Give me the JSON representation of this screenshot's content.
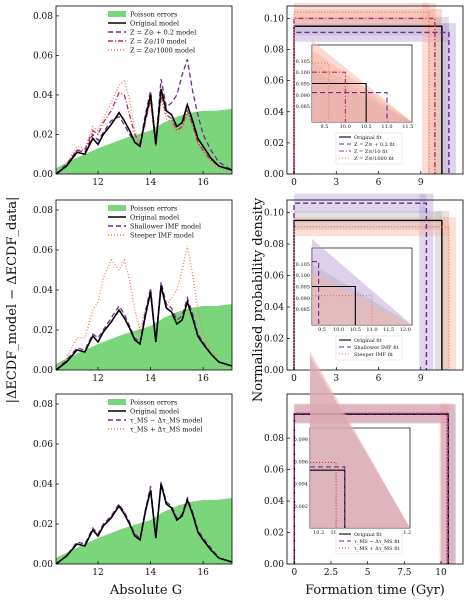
{
  "figure": {
    "left_ylabel": "|ΔECDF_model − ΔECDF_data|",
    "right_ylabel": "Normalised probability density",
    "left_xlabel": "Absolute G",
    "right_xlabel": "Formation time (Gyr)"
  },
  "colors": {
    "poisson": "#7bd67b",
    "original": "#000000",
    "purple": "#6a2a8e",
    "crimson": "#c4265e",
    "salmon": "#f07a5a",
    "light_purple": "#b9a2d6",
    "light_red": "#f2a9a0"
  },
  "chart_data": [
    {
      "type": "line",
      "panel": "left-1",
      "xlim": [
        10.4,
        17.1
      ],
      "ylim": [
        0,
        0.085
      ],
      "xticks": [
        12,
        14,
        16
      ],
      "yticks": [
        0.0,
        0.02,
        0.04,
        0.06,
        0.08
      ],
      "ytick_labels": [
        "0.00",
        "0.02",
        "0.04",
        "0.06",
        "0.08"
      ],
      "poisson_band": {
        "name": "Poisson errors",
        "x": [
          10.4,
          11.0,
          12.0,
          13.0,
          14.0,
          14.5,
          15.0,
          15.5,
          16.0,
          16.5,
          17.1
        ],
        "y": [
          0.003,
          0.007,
          0.013,
          0.018,
          0.022,
          0.026,
          0.029,
          0.031,
          0.032,
          0.032,
          0.033
        ]
      },
      "series": [
        {
          "name": "Original model",
          "style": "solid",
          "color": "original",
          "x": [
            10.4,
            10.8,
            11.2,
            11.5,
            11.8,
            12.0,
            12.2,
            12.5,
            12.8,
            13.0,
            13.2,
            13.4,
            13.6,
            13.8,
            14.0,
            14.2,
            14.4,
            14.6,
            14.8,
            15.0,
            15.2,
            15.4,
            15.6,
            15.8,
            16.0,
            16.3,
            16.6,
            17.1
          ],
          "y": [
            0.0,
            0.004,
            0.011,
            0.01,
            0.018,
            0.015,
            0.02,
            0.025,
            0.031,
            0.027,
            0.022,
            0.016,
            0.014,
            0.028,
            0.04,
            0.015,
            0.043,
            0.032,
            0.03,
            0.024,
            0.026,
            0.035,
            0.027,
            0.018,
            0.014,
            0.008,
            0.004,
            0.002
          ]
        },
        {
          "name": "Z = Z⊙ + 0.2 model",
          "style": "dashed",
          "color": "purple",
          "x": [
            10.4,
            10.8,
            11.2,
            11.5,
            11.8,
            12.0,
            12.2,
            12.5,
            12.8,
            13.0,
            13.2,
            13.4,
            13.6,
            13.8,
            14.0,
            14.2,
            14.4,
            14.6,
            14.8,
            15.0,
            15.2,
            15.4,
            15.6,
            15.8,
            16.0,
            16.3,
            16.6,
            17.1
          ],
          "y": [
            0.0,
            0.005,
            0.012,
            0.011,
            0.02,
            0.017,
            0.021,
            0.027,
            0.029,
            0.025,
            0.02,
            0.016,
            0.015,
            0.03,
            0.042,
            0.016,
            0.048,
            0.034,
            0.036,
            0.04,
            0.05,
            0.058,
            0.042,
            0.03,
            0.02,
            0.012,
            0.006,
            0.002
          ]
        },
        {
          "name": "Z = Z⊙/10 model",
          "style": "dashdot",
          "color": "crimson",
          "x": [
            10.4,
            10.8,
            11.2,
            11.5,
            11.8,
            12.0,
            12.2,
            12.5,
            12.8,
            13.0,
            13.2,
            13.4,
            13.6,
            13.8,
            14.0,
            14.2,
            14.4,
            14.6,
            14.8,
            15.0,
            15.2,
            15.4,
            15.6,
            15.8,
            16.0,
            16.3,
            16.6,
            17.1
          ],
          "y": [
            0.0,
            0.004,
            0.012,
            0.012,
            0.022,
            0.02,
            0.026,
            0.032,
            0.041,
            0.04,
            0.03,
            0.02,
            0.015,
            0.026,
            0.038,
            0.014,
            0.04,
            0.03,
            0.028,
            0.022,
            0.024,
            0.032,
            0.025,
            0.016,
            0.012,
            0.007,
            0.004,
            0.002
          ]
        },
        {
          "name": "Z = Z⊙/1000 model",
          "style": "dotted",
          "color": "salmon",
          "x": [
            10.4,
            10.8,
            11.2,
            11.5,
            11.8,
            12.0,
            12.2,
            12.5,
            12.8,
            13.0,
            13.2,
            13.4,
            13.6,
            13.8,
            14.0,
            14.2,
            14.4,
            14.6,
            14.8,
            15.0,
            15.2,
            15.4,
            15.6,
            15.8,
            16.0,
            16.3,
            16.6,
            17.1
          ],
          "y": [
            0.0,
            0.005,
            0.014,
            0.013,
            0.024,
            0.022,
            0.028,
            0.036,
            0.045,
            0.047,
            0.038,
            0.022,
            0.016,
            0.028,
            0.036,
            0.015,
            0.038,
            0.028,
            0.026,
            0.02,
            0.022,
            0.03,
            0.024,
            0.015,
            0.011,
            0.006,
            0.003,
            0.001
          ]
        }
      ]
    },
    {
      "type": "line",
      "panel": "left-2",
      "xlim": [
        10.4,
        17.1
      ],
      "ylim": [
        0,
        0.085
      ],
      "xticks": [
        12,
        14,
        16
      ],
      "yticks": [
        0.0,
        0.02,
        0.04,
        0.06,
        0.08
      ],
      "ytick_labels": [
        "0.00",
        "0.02",
        "0.04",
        "0.06",
        "0.08"
      ],
      "poisson_band": {
        "name": "Poisson errors",
        "x": [
          10.4,
          11.0,
          12.0,
          13.0,
          14.0,
          14.5,
          15.0,
          15.5,
          16.0,
          16.5,
          17.1
        ],
        "y": [
          0.003,
          0.007,
          0.013,
          0.018,
          0.022,
          0.026,
          0.029,
          0.031,
          0.032,
          0.032,
          0.033
        ]
      },
      "series": [
        {
          "name": "Original model",
          "style": "solid",
          "color": "original",
          "x": [
            10.4,
            10.8,
            11.2,
            11.5,
            11.8,
            12.0,
            12.2,
            12.5,
            12.8,
            13.0,
            13.2,
            13.4,
            13.6,
            13.8,
            14.0,
            14.2,
            14.4,
            14.6,
            14.8,
            15.0,
            15.2,
            15.4,
            15.6,
            15.8,
            16.0,
            16.3,
            16.6,
            17.1
          ],
          "y": [
            0.0,
            0.004,
            0.01,
            0.009,
            0.017,
            0.014,
            0.019,
            0.024,
            0.03,
            0.026,
            0.021,
            0.015,
            0.013,
            0.027,
            0.039,
            0.014,
            0.042,
            0.031,
            0.029,
            0.023,
            0.025,
            0.034,
            0.026,
            0.017,
            0.013,
            0.008,
            0.004,
            0.002
          ]
        },
        {
          "name": "Shallower IMF model",
          "style": "dashed",
          "color": "purple",
          "x": [
            10.4,
            10.8,
            11.2,
            11.5,
            11.8,
            12.0,
            12.2,
            12.5,
            12.8,
            13.0,
            13.2,
            13.4,
            13.6,
            13.8,
            14.0,
            14.2,
            14.4,
            14.6,
            14.8,
            15.0,
            15.2,
            15.4,
            15.6,
            15.8,
            16.0,
            16.3,
            16.6,
            17.1
          ],
          "y": [
            0.0,
            0.005,
            0.011,
            0.01,
            0.018,
            0.016,
            0.02,
            0.026,
            0.032,
            0.028,
            0.022,
            0.016,
            0.014,
            0.029,
            0.041,
            0.015,
            0.044,
            0.033,
            0.031,
            0.025,
            0.027,
            0.036,
            0.028,
            0.018,
            0.014,
            0.008,
            0.004,
            0.002
          ]
        },
        {
          "name": "Steeper IMF model",
          "style": "dotted",
          "color": "salmon",
          "x": [
            10.4,
            10.8,
            11.2,
            11.5,
            11.8,
            12.0,
            12.2,
            12.5,
            12.8,
            13.0,
            13.2,
            13.4,
            13.6,
            13.8,
            14.0,
            14.2,
            14.4,
            14.6,
            14.8,
            15.0,
            15.2,
            15.4,
            15.6,
            15.8,
            16.0,
            16.3,
            16.6,
            17.1
          ],
          "y": [
            0.0,
            0.006,
            0.016,
            0.016,
            0.03,
            0.034,
            0.046,
            0.055,
            0.05,
            0.055,
            0.045,
            0.03,
            0.02,
            0.03,
            0.038,
            0.014,
            0.04,
            0.032,
            0.036,
            0.04,
            0.05,
            0.062,
            0.048,
            0.03,
            0.018,
            0.01,
            0.004,
            0.002
          ]
        }
      ]
    },
    {
      "type": "line",
      "panel": "left-3",
      "xlim": [
        10.4,
        17.1
      ],
      "ylim": [
        0,
        0.085
      ],
      "xticks": [
        12,
        14,
        16
      ],
      "yticks": [
        0.0,
        0.02,
        0.04,
        0.06,
        0.08
      ],
      "ytick_labels": [
        "0.00",
        "0.02",
        "0.04",
        "0.06",
        "0.08"
      ],
      "poisson_band": {
        "name": "Poisson errors",
        "x": [
          10.4,
          11.0,
          12.0,
          13.0,
          14.0,
          14.5,
          15.0,
          15.5,
          16.0,
          16.5,
          17.1
        ],
        "y": [
          0.003,
          0.007,
          0.013,
          0.018,
          0.022,
          0.026,
          0.029,
          0.031,
          0.032,
          0.032,
          0.033
        ]
      },
      "series": [
        {
          "name": "Original model",
          "style": "solid",
          "color": "original",
          "x": [
            10.4,
            10.8,
            11.2,
            11.5,
            11.8,
            12.0,
            12.2,
            12.5,
            12.8,
            13.0,
            13.2,
            13.4,
            13.6,
            13.8,
            14.0,
            14.2,
            14.4,
            14.6,
            14.8,
            15.0,
            15.2,
            15.4,
            15.6,
            15.8,
            16.0,
            16.3,
            16.6,
            17.1
          ],
          "y": [
            0.0,
            0.004,
            0.01,
            0.009,
            0.017,
            0.014,
            0.019,
            0.023,
            0.029,
            0.025,
            0.02,
            0.014,
            0.012,
            0.026,
            0.037,
            0.013,
            0.04,
            0.03,
            0.028,
            0.022,
            0.024,
            0.032,
            0.025,
            0.016,
            0.012,
            0.007,
            0.003,
            0.001
          ]
        },
        {
          "name": "τ_MS − Δτ_MS model",
          "style": "dashed",
          "color": "purple",
          "x": [
            10.4,
            10.8,
            11.2,
            11.5,
            11.8,
            12.0,
            12.2,
            12.5,
            12.8,
            13.0,
            13.2,
            13.4,
            13.6,
            13.8,
            14.0,
            14.2,
            14.4,
            14.6,
            14.8,
            15.0,
            15.2,
            15.4,
            15.6,
            15.8,
            16.0,
            16.3,
            16.6,
            17.1
          ],
          "y": [
            0.0,
            0.004,
            0.011,
            0.01,
            0.018,
            0.015,
            0.02,
            0.024,
            0.03,
            0.026,
            0.021,
            0.015,
            0.013,
            0.027,
            0.039,
            0.014,
            0.041,
            0.031,
            0.029,
            0.023,
            0.025,
            0.033,
            0.026,
            0.017,
            0.013,
            0.008,
            0.003,
            0.001
          ]
        },
        {
          "name": "τ_MS + Δτ_MS model",
          "style": "dotted",
          "color": "salmon",
          "x": [
            10.4,
            10.8,
            11.2,
            11.5,
            11.8,
            12.0,
            12.2,
            12.5,
            12.8,
            13.0,
            13.2,
            13.4,
            13.6,
            13.8,
            14.0,
            14.2,
            14.4,
            14.6,
            14.8,
            15.0,
            15.2,
            15.4,
            15.6,
            15.8,
            16.0,
            16.3,
            16.6,
            17.1
          ],
          "y": [
            0.0,
            0.004,
            0.01,
            0.01,
            0.017,
            0.015,
            0.019,
            0.024,
            0.029,
            0.026,
            0.02,
            0.015,
            0.012,
            0.026,
            0.038,
            0.013,
            0.04,
            0.03,
            0.028,
            0.022,
            0.024,
            0.032,
            0.025,
            0.016,
            0.012,
            0.007,
            0.003,
            0.001
          ]
        }
      ]
    },
    {
      "type": "line",
      "panel": "right-1",
      "xlim": [
        -0.5,
        12
      ],
      "ylim": [
        0,
        0.108
      ],
      "xticks": [
        0,
        3,
        6,
        9
      ],
      "yticks": [
        0.0,
        0.02,
        0.04,
        0.06,
        0.08,
        0.1
      ],
      "ytick_labels": [
        "0.00",
        "0.02",
        "0.04",
        "0.06",
        "0.08",
        "0.10"
      ],
      "steps": [
        {
          "name": "Original fit",
          "style": "solid",
          "color": "original",
          "tmax": 10.5,
          "height": 0.095
        },
        {
          "name": "Z = Z⊙ + 0.2 fit",
          "style": "dashed",
          "color": "purple",
          "tmax": 11.0,
          "height": 0.091
        },
        {
          "name": "Z = Z⊙/10 fit",
          "style": "dashdot",
          "color": "crimson",
          "tmax": 10.0,
          "height": 0.1
        },
        {
          "name": "Z = Z⊙/1000 fit",
          "style": "dotted",
          "color": "salmon",
          "tmax": 9.6,
          "height": 0.104
        }
      ],
      "inset": {
        "xlim": [
          9.2,
          11.6
        ],
        "ylim": [
          0.078,
          0.112
        ],
        "xticks": [
          9.5,
          10.0,
          10.5,
          11.0,
          11.5
        ],
        "yticks": [
          0.085,
          0.09,
          0.095,
          0.1,
          0.105
        ]
      }
    },
    {
      "type": "line",
      "panel": "right-2",
      "xlim": [
        -0.5,
        12
      ],
      "ylim": [
        0,
        0.108
      ],
      "xticks": [
        0,
        3,
        6,
        9
      ],
      "yticks": [
        0.0,
        0.02,
        0.04,
        0.06,
        0.08,
        0.1
      ],
      "ytick_labels": [
        "0.00",
        "0.02",
        "0.04",
        "0.06",
        "0.08",
        "0.10"
      ],
      "steps": [
        {
          "name": "Original fit",
          "style": "solid",
          "color": "original",
          "tmax": 10.5,
          "height": 0.095
        },
        {
          "name": "Shallower IMF fit",
          "style": "dashed",
          "color": "purple",
          "tmax": 9.4,
          "height": 0.106
        },
        {
          "name": "Steeper IMF fit",
          "style": "dotted",
          "color": "salmon",
          "tmax": 11.0,
          "height": 0.091
        }
      ],
      "inset": {
        "xlim": [
          9.2,
          12.2
        ],
        "ylim": [
          0.078,
          0.112
        ],
        "xticks": [
          9.5,
          10.0,
          10.5,
          11.0,
          11.5,
          12.0
        ],
        "yticks": [
          0.085,
          0.09,
          0.095,
          0.1,
          0.105
        ]
      }
    },
    {
      "type": "line",
      "panel": "right-3",
      "xlim": [
        -0.5,
        11.5
      ],
      "ylim": [
        0,
        0.108
      ],
      "xticks": [
        0.0,
        2.5,
        5.0,
        7.5,
        10.0
      ],
      "yticks": [
        0.0,
        0.02,
        0.04,
        0.06,
        0.08
      ],
      "ytick_labels": [
        "0.00",
        "0.02",
        "0.04",
        "0.06",
        "0.08"
      ],
      "steps": [
        {
          "name": "Original fit",
          "style": "solid",
          "color": "original",
          "tmax": 10.5,
          "height": 0.0952
        },
        {
          "name": "τ_MS − Δτ_MS fit",
          "style": "dashed",
          "color": "purple",
          "tmax": 10.5,
          "height": 0.0955
        },
        {
          "name": "τ_MS + Δτ_MS fit",
          "style": "dotted",
          "color": "crimson",
          "tmax": 10.4,
          "height": 0.0959
        }
      ],
      "inset": {
        "xlim": [
          10.1,
          11.25
        ],
        "ylim": [
          0.09,
          0.099
        ],
        "xticks": [
          10.2,
          10.4,
          10.6,
          10.8,
          11.0,
          11.2
        ],
        "yticks": [
          0.092,
          0.094,
          0.096,
          0.098
        ]
      }
    }
  ]
}
